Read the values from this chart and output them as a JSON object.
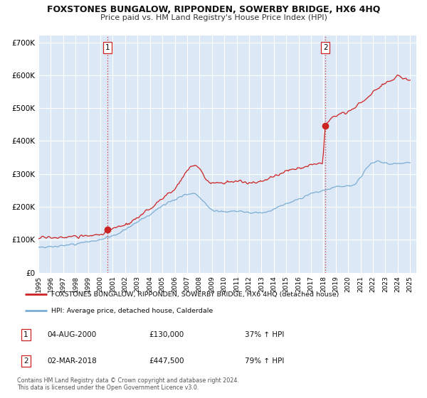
{
  "title": "FOXSTONES BUNGALOW, RIPPONDEN, SOWERBY BRIDGE, HX6 4HQ",
  "subtitle": "Price paid vs. HM Land Registry's House Price Index (HPI)",
  "xlim": [
    1995.0,
    2025.5
  ],
  "ylim": [
    0,
    720000
  ],
  "yticks": [
    0,
    100000,
    200000,
    300000,
    400000,
    500000,
    600000,
    700000
  ],
  "ytick_labels": [
    "£0",
    "£100K",
    "£200K",
    "£300K",
    "£400K",
    "£500K",
    "£600K",
    "£700K"
  ],
  "xticks": [
    1995,
    1996,
    1997,
    1998,
    1999,
    2000,
    2001,
    2002,
    2003,
    2004,
    2005,
    2006,
    2007,
    2008,
    2009,
    2010,
    2011,
    2012,
    2013,
    2014,
    2015,
    2016,
    2017,
    2018,
    2019,
    2020,
    2021,
    2022,
    2023,
    2024,
    2025
  ],
  "bg_color": "#dce8f5",
  "plot_bg_color": "#dce8f5",
  "outer_bg": "#ffffff",
  "grid_color": "#ffffff",
  "red_line_color": "#cc2222",
  "blue_line_color": "#7aadd4",
  "marker1_x": 2000.583,
  "marker1_y": 130000,
  "marker2_x": 2018.167,
  "marker2_y": 447500,
  "vline1_x": 2000.583,
  "vline2_x": 2018.167,
  "legend_label_red": "FOXSTONES BUNGALOW, RIPPONDEN, SOWERBY BRIDGE, HX6 4HQ (detached house)",
  "legend_label_blue": "HPI: Average price, detached house, Calderdale",
  "table_rows": [
    {
      "num": "1",
      "date": "04-AUG-2000",
      "price": "£130,000",
      "hpi": "37% ↑ HPI"
    },
    {
      "num": "2",
      "date": "02-MAR-2018",
      "price": "£447,500",
      "hpi": "79% ↑ HPI"
    }
  ],
  "footer": "Contains HM Land Registry data © Crown copyright and database right 2024.\nThis data is licensed under the Open Government Licence v3.0.",
  "red_x": [
    1995.0,
    1995.083,
    1995.167,
    1995.25,
    1995.333,
    1995.417,
    1995.5,
    1995.583,
    1995.667,
    1995.75,
    1995.833,
    1995.917,
    1996.0,
    1996.083,
    1996.167,
    1996.25,
    1996.333,
    1996.417,
    1996.5,
    1996.583,
    1996.667,
    1996.75,
    1996.833,
    1996.917,
    1997.0,
    1997.083,
    1997.167,
    1997.25,
    1997.333,
    1997.417,
    1997.5,
    1997.583,
    1997.667,
    1997.75,
    1997.833,
    1997.917,
    1998.0,
    1998.083,
    1998.167,
    1998.25,
    1998.333,
    1998.417,
    1998.5,
    1998.583,
    1998.667,
    1998.75,
    1998.833,
    1998.917,
    1999.0,
    1999.083,
    1999.167,
    1999.25,
    1999.333,
    1999.417,
    1999.5,
    1999.583,
    1999.667,
    1999.75,
    1999.833,
    1999.917,
    2000.0,
    2000.083,
    2000.167,
    2000.25,
    2000.333,
    2000.417,
    2000.5,
    2000.583,
    2000.667,
    2000.75,
    2000.833,
    2000.917,
    2001.0,
    2001.083,
    2001.167,
    2001.25,
    2001.333,
    2001.417,
    2001.5,
    2001.583,
    2001.667,
    2001.75,
    2001.833,
    2001.917,
    2002.0,
    2002.083,
    2002.167,
    2002.25,
    2002.333,
    2002.417,
    2002.5,
    2002.583,
    2002.667,
    2002.75,
    2002.833,
    2002.917,
    2003.0,
    2003.083,
    2003.167,
    2003.25,
    2003.333,
    2003.417,
    2003.5,
    2003.583,
    2003.667,
    2003.75,
    2003.833,
    2003.917,
    2004.0,
    2004.083,
    2004.167,
    2004.25,
    2004.333,
    2004.417,
    2004.5,
    2004.583,
    2004.667,
    2004.75,
    2004.833,
    2004.917,
    2005.0,
    2005.083,
    2005.167,
    2005.25,
    2005.333,
    2005.417,
    2005.5,
    2005.583,
    2005.667,
    2005.75,
    2005.833,
    2005.917,
    2006.0,
    2006.083,
    2006.167,
    2006.25,
    2006.333,
    2006.417,
    2006.5,
    2006.583,
    2006.667,
    2006.75,
    2006.833,
    2006.917,
    2007.0,
    2007.083,
    2007.167,
    2007.25,
    2007.333,
    2007.417,
    2007.5,
    2007.583,
    2007.667,
    2007.75,
    2007.833,
    2007.917,
    2008.0,
    2008.083,
    2008.167,
    2008.25,
    2008.333,
    2008.417,
    2008.5,
    2008.583,
    2008.667,
    2008.75,
    2008.833,
    2008.917,
    2009.0,
    2009.083,
    2009.167,
    2009.25,
    2009.333,
    2009.417,
    2009.5,
    2009.583,
    2009.667,
    2009.75,
    2009.833,
    2009.917,
    2010.0,
    2010.083,
    2010.167,
    2010.25,
    2010.333,
    2010.417,
    2010.5,
    2010.583,
    2010.667,
    2010.75,
    2010.833,
    2010.917,
    2011.0,
    2011.083,
    2011.167,
    2011.25,
    2011.333,
    2011.417,
    2011.5,
    2011.583,
    2011.667,
    2011.75,
    2011.833,
    2011.917,
    2012.0,
    2012.083,
    2012.167,
    2012.25,
    2012.333,
    2012.417,
    2012.5,
    2012.583,
    2012.667,
    2012.75,
    2012.833,
    2012.917,
    2013.0,
    2013.083,
    2013.167,
    2013.25,
    2013.333,
    2013.417,
    2013.5,
    2013.583,
    2013.667,
    2013.75,
    2013.833,
    2013.917,
    2014.0,
    2014.083,
    2014.167,
    2014.25,
    2014.333,
    2014.417,
    2014.5,
    2014.583,
    2014.667,
    2014.75,
    2014.833,
    2014.917,
    2015.0,
    2015.083,
    2015.167,
    2015.25,
    2015.333,
    2015.417,
    2015.5,
    2015.583,
    2015.667,
    2015.75,
    2015.833,
    2015.917,
    2016.0,
    2016.083,
    2016.167,
    2016.25,
    2016.333,
    2016.417,
    2016.5,
    2016.583,
    2016.667,
    2016.75,
    2016.833,
    2016.917,
    2017.0,
    2017.083,
    2017.167,
    2017.25,
    2017.333,
    2017.417,
    2017.5,
    2017.583,
    2017.667,
    2017.75,
    2017.833,
    2017.917,
    2018.0,
    2018.083,
    2018.167,
    2018.25,
    2018.333,
    2018.417,
    2018.5,
    2018.583,
    2018.667,
    2018.75,
    2018.833,
    2018.917,
    2019.0,
    2019.083,
    2019.167,
    2019.25,
    2019.333,
    2019.417,
    2019.5,
    2019.583,
    2019.667,
    2019.75,
    2019.833,
    2019.917,
    2020.0,
    2020.083,
    2020.167,
    2020.25,
    2020.333,
    2020.417,
    2020.5,
    2020.583,
    2020.667,
    2020.75,
    2020.833,
    2020.917,
    2021.0,
    2021.083,
    2021.167,
    2021.25,
    2021.333,
    2021.417,
    2021.5,
    2021.583,
    2021.667,
    2021.75,
    2021.833,
    2021.917,
    2022.0,
    2022.083,
    2022.167,
    2022.25,
    2022.333,
    2022.417,
    2022.5,
    2022.583,
    2022.667,
    2022.75,
    2022.833,
    2022.917,
    2023.0,
    2023.083,
    2023.167,
    2023.25,
    2023.333,
    2023.417,
    2023.5,
    2023.583,
    2023.667,
    2023.75,
    2023.833,
    2023.917,
    2024.0,
    2024.083,
    2024.167,
    2024.25,
    2024.333,
    2024.417,
    2024.5,
    2024.583,
    2024.667,
    2024.75,
    2024.833,
    2024.917,
    2025.0
  ],
  "blue_x": [
    1995.0,
    1995.083,
    1995.167,
    1995.25,
    1995.333,
    1995.417,
    1995.5,
    1995.583,
    1995.667,
    1995.75,
    1995.833,
    1995.917,
    1996.0,
    1996.083,
    1996.167,
    1996.25,
    1996.333,
    1996.417,
    1996.5,
    1996.583,
    1996.667,
    1996.75,
    1996.833,
    1996.917,
    1997.0,
    1997.083,
    1997.167,
    1997.25,
    1997.333,
    1997.417,
    1997.5,
    1997.583,
    1997.667,
    1997.75,
    1997.833,
    1997.917,
    1998.0,
    1998.083,
    1998.167,
    1998.25,
    1998.333,
    1998.417,
    1998.5,
    1998.583,
    1998.667,
    1998.75,
    1998.833,
    1998.917,
    1999.0,
    1999.083,
    1999.167,
    1999.25,
    1999.333,
    1999.417,
    1999.5,
    1999.583,
    1999.667,
    1999.75,
    1999.833,
    1999.917,
    2000.0,
    2000.083,
    2000.167,
    2000.25,
    2000.333,
    2000.417,
    2000.5,
    2000.583,
    2000.667,
    2000.75,
    2000.833,
    2000.917,
    2001.0,
    2001.083,
    2001.167,
    2001.25,
    2001.333,
    2001.417,
    2001.5,
    2001.583,
    2001.667,
    2001.75,
    2001.833,
    2001.917,
    2002.0,
    2002.083,
    2002.167,
    2002.25,
    2002.333,
    2002.417,
    2002.5,
    2002.583,
    2002.667,
    2002.75,
    2002.833,
    2002.917,
    2003.0,
    2003.083,
    2003.167,
    2003.25,
    2003.333,
    2003.417,
    2003.5,
    2003.583,
    2003.667,
    2003.75,
    2003.833,
    2003.917,
    2004.0,
    2004.083,
    2004.167,
    2004.25,
    2004.333,
    2004.417,
    2004.5,
    2004.583,
    2004.667,
    2004.75,
    2004.833,
    2004.917,
    2005.0,
    2005.083,
    2005.167,
    2005.25,
    2005.333,
    2005.417,
    2005.5,
    2005.583,
    2005.667,
    2005.75,
    2005.833,
    2005.917,
    2006.0,
    2006.083,
    2006.167,
    2006.25,
    2006.333,
    2006.417,
    2006.5,
    2006.583,
    2006.667,
    2006.75,
    2006.833,
    2006.917,
    2007.0,
    2007.083,
    2007.167,
    2007.25,
    2007.333,
    2007.417,
    2007.5,
    2007.583,
    2007.667,
    2007.75,
    2007.833,
    2007.917,
    2008.0,
    2008.083,
    2008.167,
    2008.25,
    2008.333,
    2008.417,
    2008.5,
    2008.583,
    2008.667,
    2008.75,
    2008.833,
    2008.917,
    2009.0,
    2009.083,
    2009.167,
    2009.25,
    2009.333,
    2009.417,
    2009.5,
    2009.583,
    2009.667,
    2009.75,
    2009.833,
    2009.917,
    2010.0,
    2010.083,
    2010.167,
    2010.25,
    2010.333,
    2010.417,
    2010.5,
    2010.583,
    2010.667,
    2010.75,
    2010.833,
    2010.917,
    2011.0,
    2011.083,
    2011.167,
    2011.25,
    2011.333,
    2011.417,
    2011.5,
    2011.583,
    2011.667,
    2011.75,
    2011.833,
    2011.917,
    2012.0,
    2012.083,
    2012.167,
    2012.25,
    2012.333,
    2012.417,
    2012.5,
    2012.583,
    2012.667,
    2012.75,
    2012.833,
    2012.917,
    2013.0,
    2013.083,
    2013.167,
    2013.25,
    2013.333,
    2013.417,
    2013.5,
    2013.583,
    2013.667,
    2013.75,
    2013.833,
    2013.917,
    2014.0,
    2014.083,
    2014.167,
    2014.25,
    2014.333,
    2014.417,
    2014.5,
    2014.583,
    2014.667,
    2014.75,
    2014.833,
    2014.917,
    2015.0,
    2015.083,
    2015.167,
    2015.25,
    2015.333,
    2015.417,
    2015.5,
    2015.583,
    2015.667,
    2015.75,
    2015.833,
    2015.917,
    2016.0,
    2016.083,
    2016.167,
    2016.25,
    2016.333,
    2016.417,
    2016.5,
    2016.583,
    2016.667,
    2016.75,
    2016.833,
    2016.917,
    2017.0,
    2017.083,
    2017.167,
    2017.25,
    2017.333,
    2017.417,
    2017.5,
    2017.583,
    2017.667,
    2017.75,
    2017.833,
    2017.917,
    2018.0,
    2018.083,
    2018.167,
    2018.25,
    2018.333,
    2018.417,
    2018.5,
    2018.583,
    2018.667,
    2018.75,
    2018.833,
    2018.917,
    2019.0,
    2019.083,
    2019.167,
    2019.25,
    2019.333,
    2019.417,
    2019.5,
    2019.583,
    2019.667,
    2019.75,
    2019.833,
    2019.917,
    2020.0,
    2020.083,
    2020.167,
    2020.25,
    2020.333,
    2020.417,
    2020.5,
    2020.583,
    2020.667,
    2020.75,
    2020.833,
    2020.917,
    2021.0,
    2021.083,
    2021.167,
    2021.25,
    2021.333,
    2021.417,
    2021.5,
    2021.583,
    2021.667,
    2021.75,
    2021.833,
    2021.917,
    2022.0,
    2022.083,
    2022.167,
    2022.25,
    2022.333,
    2022.417,
    2022.5,
    2022.583,
    2022.667,
    2022.75,
    2022.833,
    2022.917,
    2023.0,
    2023.083,
    2023.167,
    2023.25,
    2023.333,
    2023.417,
    2023.5,
    2023.583,
    2023.667,
    2023.75,
    2023.833,
    2023.917,
    2024.0,
    2024.083,
    2024.167,
    2024.25,
    2024.333,
    2024.417,
    2024.5,
    2024.583,
    2024.667,
    2024.75,
    2024.833,
    2024.917,
    2025.0
  ]
}
